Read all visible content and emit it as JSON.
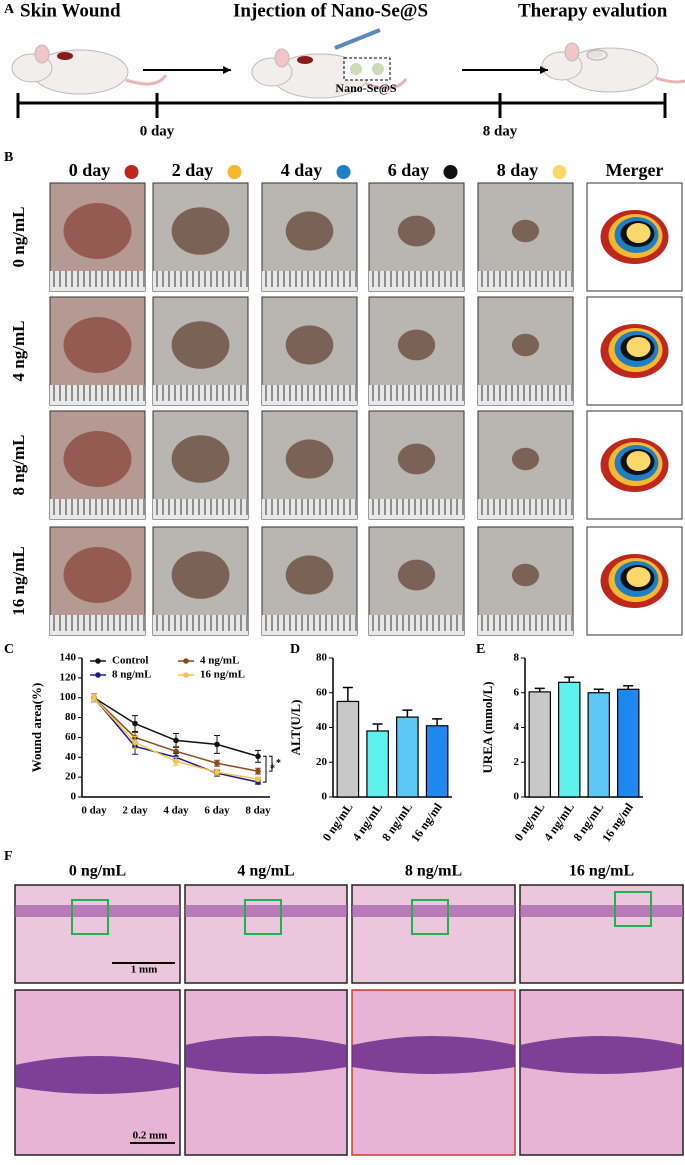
{
  "panel_labels": [
    "A",
    "B",
    "C",
    "D",
    "E",
    "F"
  ],
  "panel_a": {
    "steps": [
      "Skin Wound",
      "Injection of Nano-Se@S",
      "Therapy evalution"
    ],
    "inset_label": "Nano-Se@S",
    "timeline": [
      "0 day",
      "8 day"
    ]
  },
  "panel_b": {
    "columns": [
      {
        "label": "0 day",
        "color": "#c0271c"
      },
      {
        "label": "2 day",
        "color": "#f5b82e"
      },
      {
        "label": "4 day",
        "color": "#1f7fc4"
      },
      {
        "label": "6 day",
        "color": "#111111"
      },
      {
        "label": "8 day",
        "color": "#fbd86a"
      },
      {
        "label": "Merger"
      }
    ],
    "rows": [
      "0 ng/mL",
      "4 ng/mL",
      "8 ng/mL",
      "16 ng/mL"
    ]
  },
  "panel_f": {
    "columns": [
      "0 ng/mL",
      "4 ng/mL",
      "8 ng/mL",
      "16 ng/mL"
    ],
    "scale_bars": [
      "1 mm",
      "0.2 mm"
    ]
  },
  "chart_data": [
    {
      "type": "line",
      "y_label": "Wound area(%)",
      "categories": [
        "0 day",
        "2 day",
        "4 day",
        "6 day",
        "8 day"
      ],
      "series": [
        {
          "name": "Control",
          "color": "#111111",
          "values": [
            100,
            74,
            57,
            53,
            41
          ],
          "errors": [
            4,
            8,
            7,
            9,
            6
          ]
        },
        {
          "name": "4 ng/mL",
          "color": "#8b4a1c",
          "values": [
            100,
            60,
            46,
            34,
            26
          ],
          "errors": [
            4,
            5,
            5,
            3,
            3
          ]
        },
        {
          "name": "8 ng/mL",
          "color": "#1a1a8c",
          "values": [
            100,
            51,
            40,
            24,
            15
          ],
          "errors": [
            4,
            8,
            4,
            3,
            2
          ]
        },
        {
          "name": "16 ng/mL",
          "color": "#f5c44a",
          "values": [
            100,
            55,
            36,
            25,
            18
          ],
          "errors": [
            4,
            6,
            4,
            3,
            2
          ]
        }
      ],
      "annotations": [
        "*",
        "*"
      ],
      "ylim": [
        0,
        140
      ],
      "yticks": [
        0,
        20,
        40,
        60,
        80,
        100,
        120,
        140
      ]
    },
    {
      "type": "bar",
      "y_label": "ALT(U/L)",
      "categories": [
        "0 ng/mL",
        "4 ng/mL",
        "8 ng/mL",
        "16 ng/ml"
      ],
      "values": [
        55,
        38,
        46,
        41
      ],
      "errors": [
        8,
        4,
        4,
        4
      ],
      "colors": [
        "#c8c8c8",
        "#5ff0f0",
        "#5ec8f5",
        "#1e88f0"
      ],
      "ylim": [
        0,
        80
      ],
      "yticks": [
        0,
        20,
        40,
        60,
        80
      ]
    },
    {
      "type": "bar",
      "y_label": "UREA (mmol/L)",
      "categories": [
        "0 ng/mL",
        "4 ng/mL",
        "8 ng/mL",
        "16 ng/ml"
      ],
      "values": [
        6.05,
        6.6,
        6.0,
        6.2
      ],
      "errors": [
        0.2,
        0.3,
        0.2,
        0.2
      ],
      "colors": [
        "#c8c8c8",
        "#5ff0f0",
        "#5ec8f5",
        "#1e88f0"
      ],
      "ylim": [
        0,
        8
      ],
      "yticks": [
        0,
        2,
        4,
        6,
        8
      ]
    }
  ]
}
